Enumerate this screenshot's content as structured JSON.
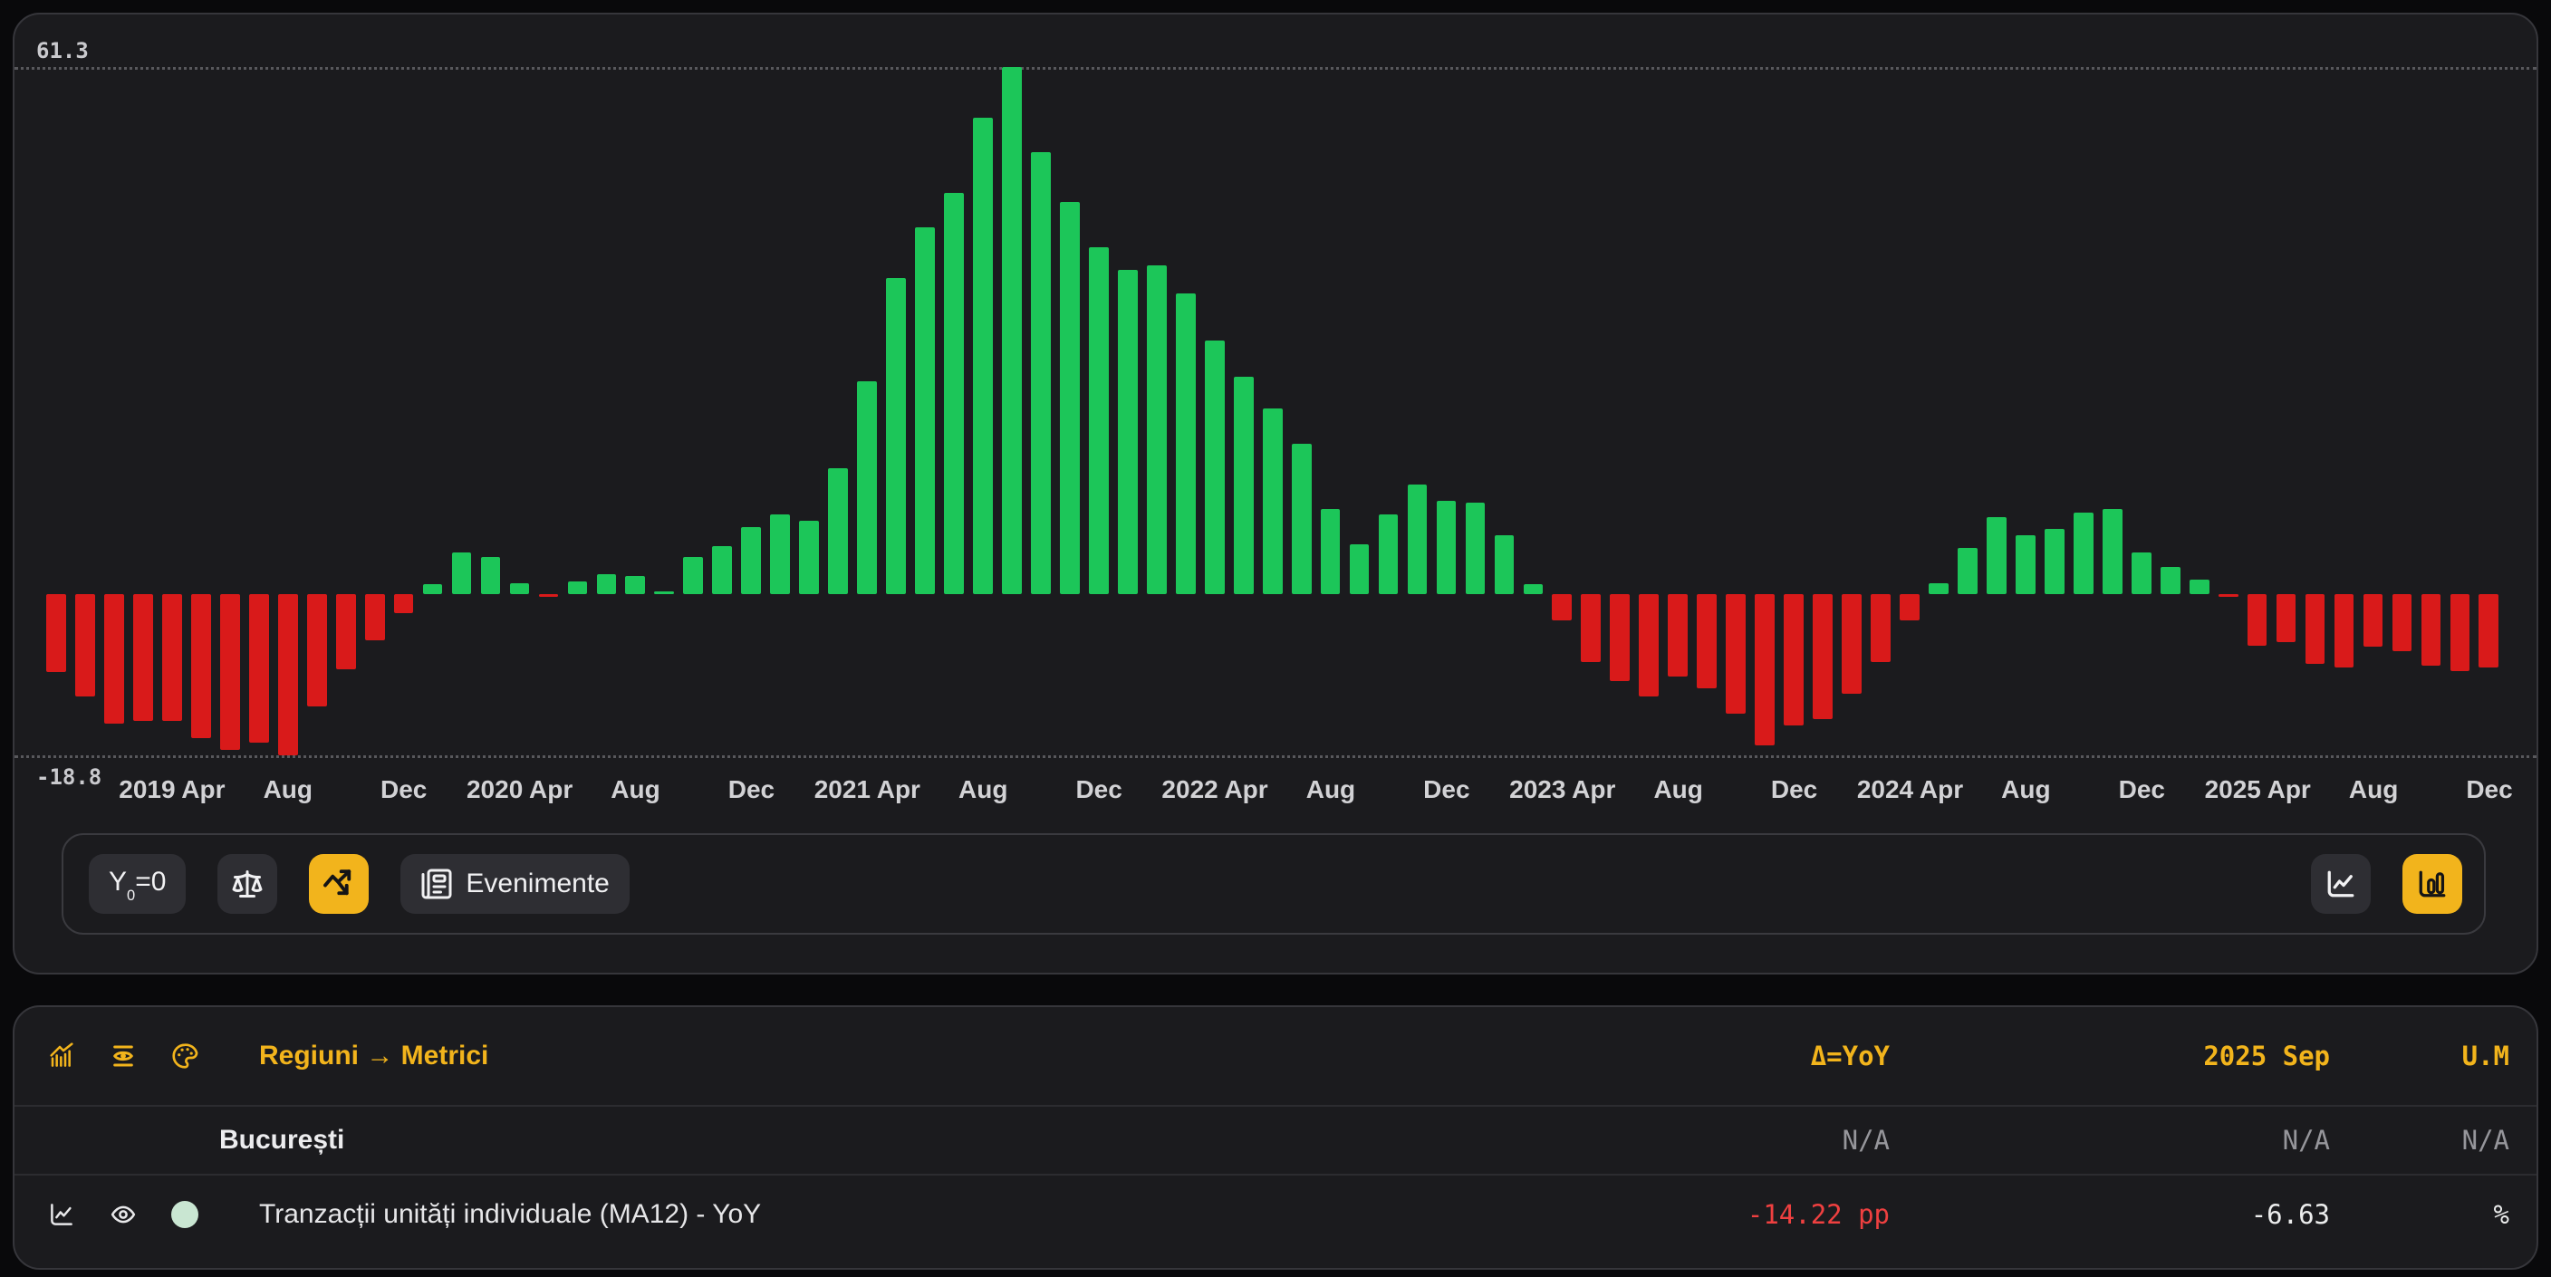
{
  "accent_color": "#f2b41c",
  "chart": {
    "y_max_label": "61.3",
    "y_min_label": "-18.8"
  },
  "chart_data": {
    "type": "bar",
    "title": "",
    "x": [
      "2018 Dec",
      "2019 Jan",
      "2019 Feb",
      "2019 Mar",
      "2019 Apr",
      "2019 May",
      "2019 Jun",
      "2019 Jul",
      "2019 Aug",
      "2019 Sep",
      "2019 Oct",
      "2019 Nov",
      "2019 Dec",
      "2020 Jan",
      "2020 Feb",
      "2020 Mar",
      "2020 Apr",
      "2020 May",
      "2020 Jun",
      "2020 Jul",
      "2020 Aug",
      "2020 Sep",
      "2020 Oct",
      "2020 Nov",
      "2020 Dec",
      "2021 Jan",
      "2021 Feb",
      "2021 Mar",
      "2021 Apr",
      "2021 May",
      "2021 Jun",
      "2021 Jul",
      "2021 Aug",
      "2021 Sep",
      "2021 Oct",
      "2021 Nov",
      "2021 Dec",
      "2022 Jan",
      "2022 Feb",
      "2022 Mar",
      "2022 Apr",
      "2022 May",
      "2022 Jun",
      "2022 Jul",
      "2022 Aug",
      "2022 Sep",
      "2022 Oct",
      "2022 Nov",
      "2022 Dec",
      "2023 Jan",
      "2023 Feb",
      "2023 Mar",
      "2023 Apr",
      "2023 May",
      "2023 Jun",
      "2023 Jul",
      "2023 Aug",
      "2023 Sep",
      "2023 Oct",
      "2023 Nov",
      "2023 Dec",
      "2024 Jan",
      "2024 Feb",
      "2024 Mar",
      "2024 Apr",
      "2024 May",
      "2024 Jun",
      "2024 Jul",
      "2024 Aug",
      "2024 Sep",
      "2024 Oct",
      "2024 Nov",
      "2024 Dec",
      "2025 Jan",
      "2025 Feb",
      "2025 Mar",
      "2025 Apr",
      "2025 May",
      "2025 Jun",
      "2025 Jul",
      "2025 Aug",
      "2025 Sep",
      "2025 Oct",
      "2025 Nov",
      "2025 Dec"
    ],
    "values": [
      -9.1,
      -11.9,
      -15.1,
      -14.8,
      -14.8,
      -16.8,
      -18.2,
      -17.3,
      -18.8,
      -13.1,
      -8.8,
      -5.4,
      -2.3,
      1.1,
      4.8,
      4.3,
      1.2,
      -0.4,
      1.4,
      2.3,
      2.1,
      0.2,
      4.3,
      5.6,
      7.8,
      9.2,
      8.5,
      14.6,
      24.7,
      36.7,
      42.6,
      46.6,
      55.4,
      61.3,
      51.4,
      45.6,
      40.3,
      37.7,
      38.2,
      35.0,
      29.5,
      25.3,
      21.6,
      17.5,
      9.9,
      5.8,
      9.2,
      12.7,
      10.8,
      10.6,
      6.8,
      1.1,
      -3.1,
      -7.9,
      -10.2,
      -12.0,
      -9.6,
      -11.0,
      -14.0,
      -17.6,
      -15.3,
      -14.6,
      -11.6,
      -7.9,
      -3.1,
      1.2,
      5.3,
      8.9,
      6.8,
      7.6,
      9.5,
      9.9,
      4.8,
      3.1,
      1.6,
      -0.4,
      -6.1,
      -5.6,
      -8.2,
      -8.6,
      -6.2,
      -6.63,
      -8.4,
      -9.0,
      -8.6
    ],
    "ticks": [
      {
        "i": 4,
        "label": "2019 Apr"
      },
      {
        "i": 8,
        "label": "Aug"
      },
      {
        "i": 12,
        "label": "Dec"
      },
      {
        "i": 16,
        "label": "2020 Apr"
      },
      {
        "i": 20,
        "label": "Aug"
      },
      {
        "i": 24,
        "label": "Dec"
      },
      {
        "i": 28,
        "label": "2021 Apr"
      },
      {
        "i": 32,
        "label": "Aug"
      },
      {
        "i": 36,
        "label": "Dec"
      },
      {
        "i": 40,
        "label": "2022 Apr"
      },
      {
        "i": 44,
        "label": "Aug"
      },
      {
        "i": 48,
        "label": "Dec"
      },
      {
        "i": 52,
        "label": "2023 Apr"
      },
      {
        "i": 56,
        "label": "Aug"
      },
      {
        "i": 60,
        "label": "Dec"
      },
      {
        "i": 64,
        "label": "2024 Apr"
      },
      {
        "i": 68,
        "label": "Aug"
      },
      {
        "i": 72,
        "label": "Dec"
      },
      {
        "i": 76,
        "label": "2025 Apr"
      },
      {
        "i": 80,
        "label": "Aug"
      },
      {
        "i": 84,
        "label": "Dec"
      }
    ],
    "ylim": [
      -18.8,
      61.3
    ],
    "ylabel": "",
    "xlabel": "",
    "grid": "dotted min/max lines only",
    "legend": "none",
    "colors": {
      "positive": "#1cc659",
      "negative": "#d91a1a"
    }
  },
  "toolbar": {
    "y0": {
      "base": "Y",
      "sub": "0",
      "rest": "=0"
    },
    "events_label": "Evenimente",
    "icons": [
      "scales-icon",
      "trend-arrows-icon",
      "newspaper-icon",
      "line-chart-icon",
      "bar-chart-icon"
    ],
    "active_buttons": [
      "trend-mode-button",
      "bar-chart-type-button"
    ]
  },
  "table": {
    "header": {
      "icons": [
        "bars-trend-icon",
        "scan-eye-icon",
        "palette-icon"
      ],
      "left_label": "Regiuni → Metrici",
      "delta_label": "Δ=YoY",
      "period_label": "2025 Sep",
      "unit_label": "U.M"
    },
    "rows": [
      {
        "name": "București",
        "delta": "N/A",
        "value": "N/A",
        "unit": "N/A"
      },
      {
        "name": "Tranzacții unități individuale (MA12) - YoY",
        "delta": "-14.22 pp",
        "value": "-6.63",
        "unit": "%",
        "swatch_color": "#c9e6d2"
      }
    ]
  }
}
